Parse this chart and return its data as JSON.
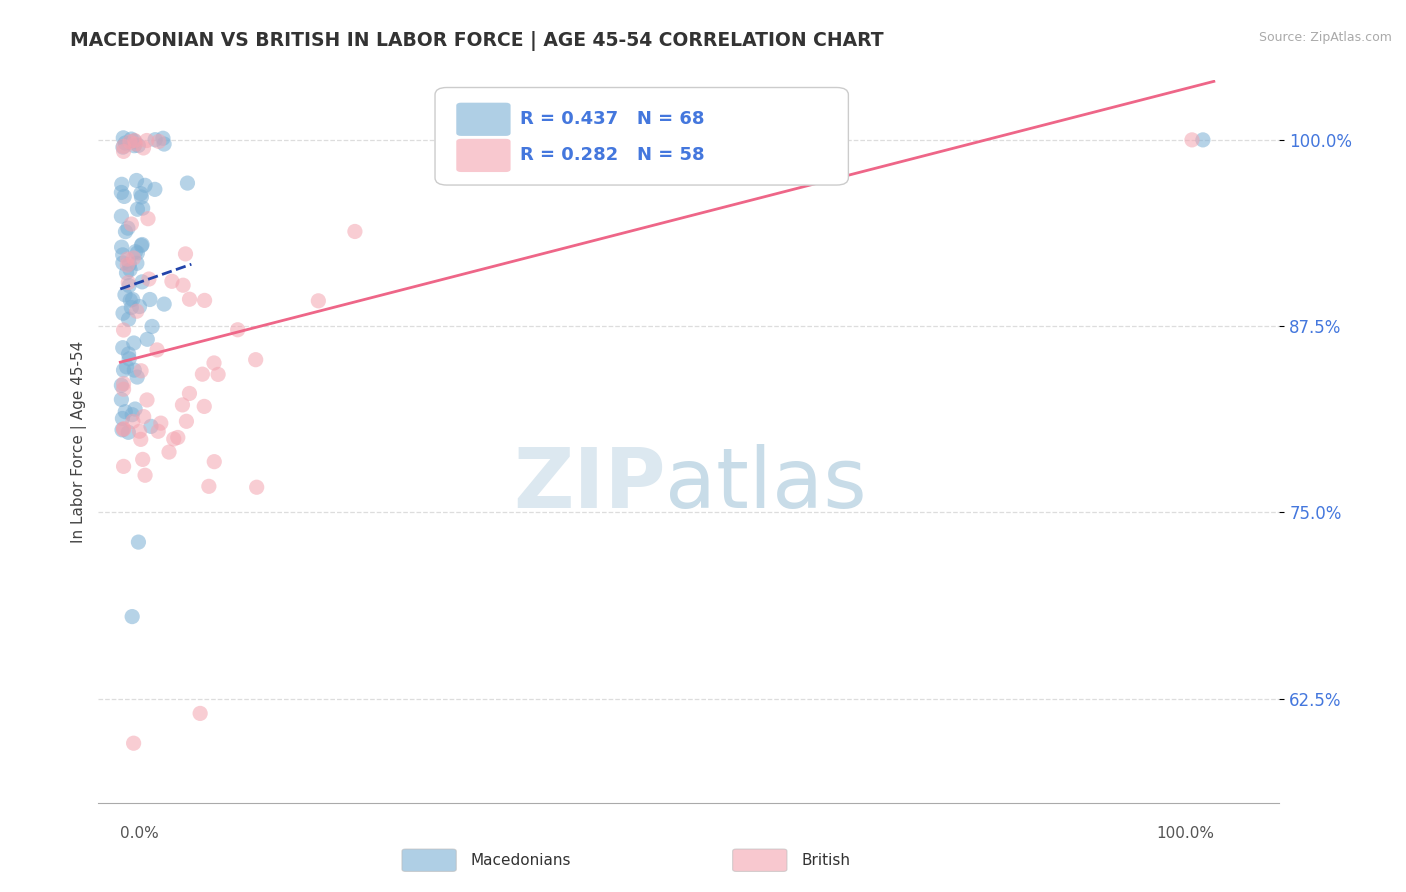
{
  "title": "MACEDONIAN VS BRITISH IN LABOR FORCE | AGE 45-54 CORRELATION CHART",
  "source": "Source: ZipAtlas.com",
  "ylabel": "In Labor Force | Age 45-54",
  "yticks": [
    0.625,
    0.75,
    0.875,
    1.0
  ],
  "ytick_labels": [
    "62.5%",
    "75.0%",
    "87.5%",
    "100.0%"
  ],
  "xlim": [
    -0.02,
    1.06
  ],
  "ylim": [
    0.555,
    1.04
  ],
  "legend_macedonian_R": "0.437",
  "legend_macedonian_N": "68",
  "legend_british_R": "0.282",
  "legend_british_N": "58",
  "macedonian_color": "#7BAFD4",
  "british_color": "#F4A4B0",
  "macedonian_line_color": "#2244AA",
  "british_line_color": "#EE6688",
  "background_color": "#FFFFFF",
  "grid_color": "#DDDDDD",
  "tick_color": "#4477DD",
  "bottom_legend_label_mac": "Macedonians",
  "bottom_legend_label_brit": "British"
}
